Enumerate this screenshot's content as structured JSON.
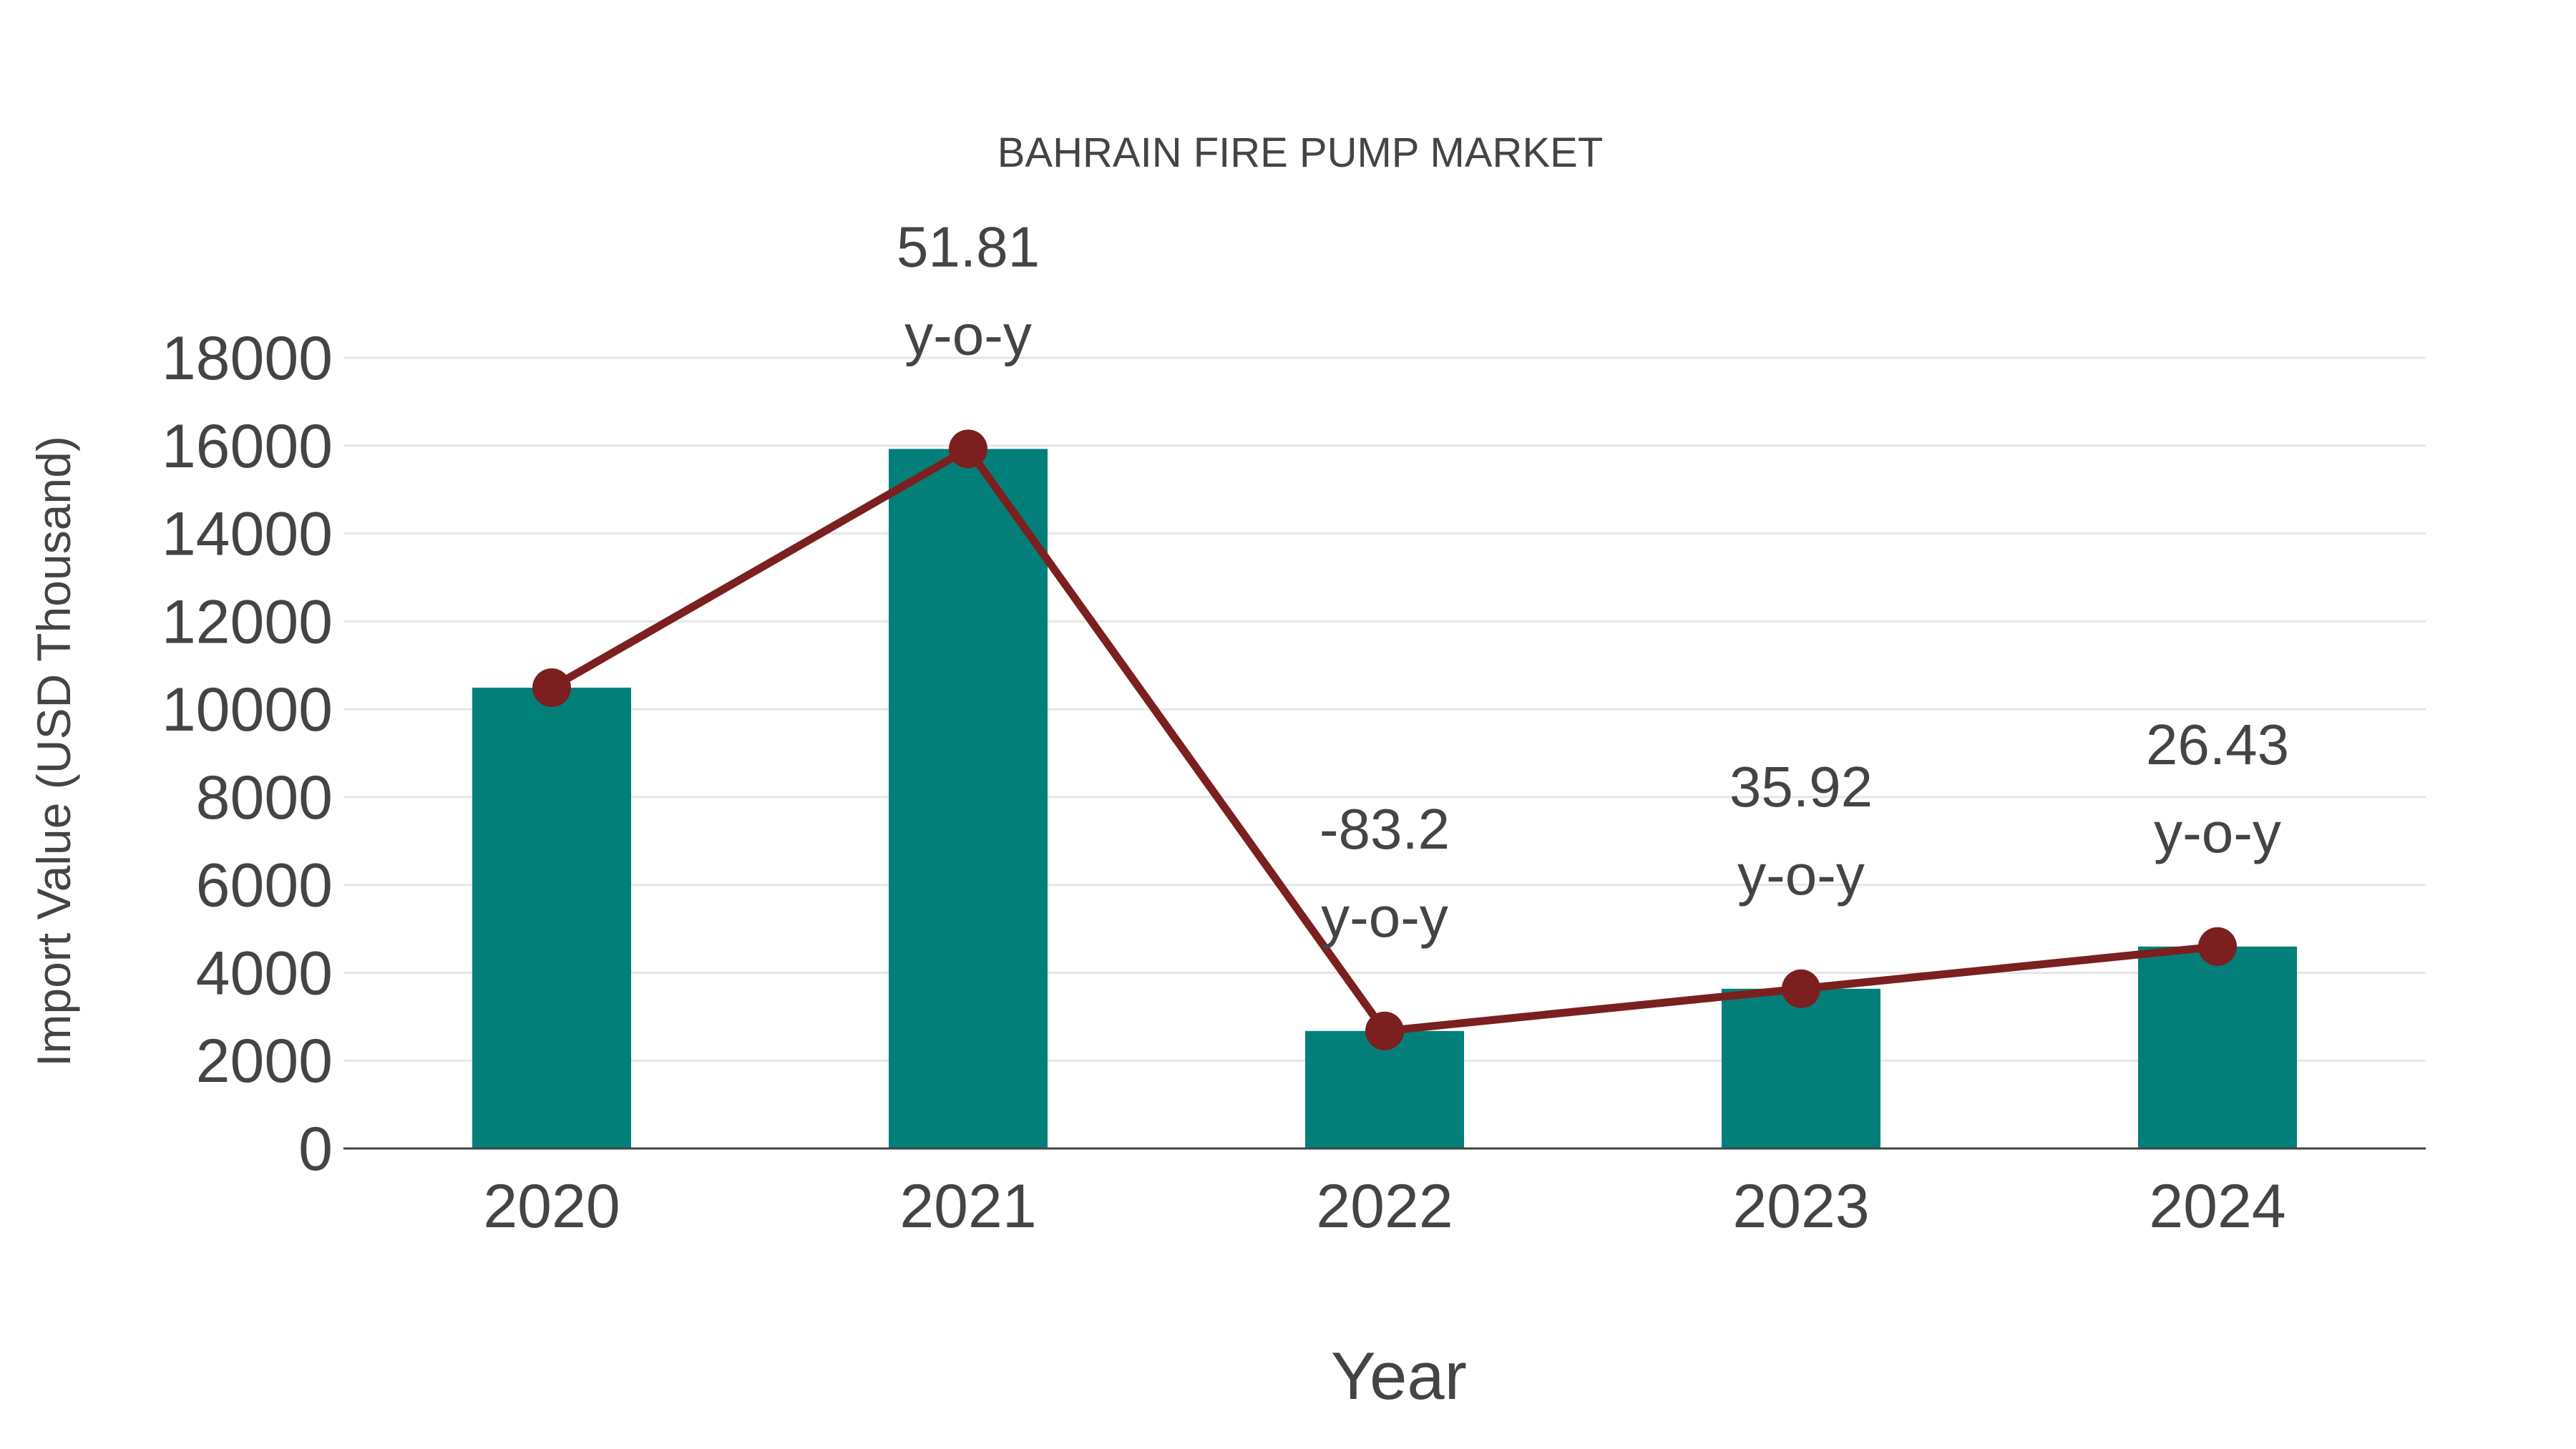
{
  "chart_data": {
    "type": "bar",
    "title": "BAHRAIN FIRE PUMP MARKET",
    "xlabel": "Year",
    "ylabel": "Import Value (USD Thousand)",
    "categories": [
      "2020",
      "2021",
      "2022",
      "2023",
      "2024"
    ],
    "series": [
      {
        "name": "Import Value",
        "type": "bar",
        "color": "#037f7a",
        "values": [
          10490,
          15925,
          2675,
          3636,
          4597
        ]
      },
      {
        "name": "Trend",
        "type": "line",
        "color": "#7b1f1f",
        "values": [
          10490,
          15925,
          2675,
          3636,
          4597
        ]
      }
    ],
    "annotations": [
      {
        "category": "2021",
        "value": "51.81",
        "suffix": "y-o-y"
      },
      {
        "category": "2022",
        "value": "-83.2",
        "suffix": "y-o-y"
      },
      {
        "category": "2023",
        "value": "35.92",
        "suffix": "y-o-y"
      },
      {
        "category": "2024",
        "value": "26.43",
        "suffix": "y-o-y"
      }
    ],
    "yticks": [
      "0",
      "2000",
      "4000",
      "6000",
      "8000",
      "10000",
      "12000",
      "14000",
      "16000",
      "18000"
    ],
    "ylim": [
      0,
      18000
    ],
    "grid": true,
    "legend": "none"
  }
}
